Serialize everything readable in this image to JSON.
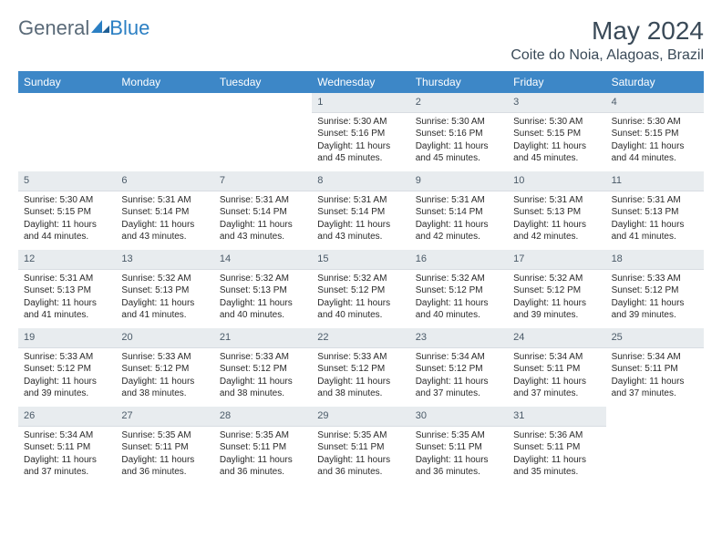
{
  "brand": {
    "part1": "General",
    "part2": "Blue"
  },
  "title": "May 2024",
  "location": "Coite do Noia, Alagoas, Brazil",
  "colors": {
    "header_bg": "#3d87c7",
    "header_text": "#ffffff",
    "daynum_bg": "#e8ecef",
    "daynum_text": "#4a5a68",
    "body_text": "#2a2a2a",
    "title_text": "#3a4a58",
    "brand_gray": "#5a6a78",
    "brand_blue": "#2b7fc3"
  },
  "day_names": [
    "Sunday",
    "Monday",
    "Tuesday",
    "Wednesday",
    "Thursday",
    "Friday",
    "Saturday"
  ],
  "weeks": [
    [
      {
        "empty": true
      },
      {
        "empty": true
      },
      {
        "empty": true
      },
      {
        "day": "1",
        "sunrise": "Sunrise: 5:30 AM",
        "sunset": "Sunset: 5:16 PM",
        "daylight": "Daylight: 11 hours and 45 minutes."
      },
      {
        "day": "2",
        "sunrise": "Sunrise: 5:30 AM",
        "sunset": "Sunset: 5:16 PM",
        "daylight": "Daylight: 11 hours and 45 minutes."
      },
      {
        "day": "3",
        "sunrise": "Sunrise: 5:30 AM",
        "sunset": "Sunset: 5:15 PM",
        "daylight": "Daylight: 11 hours and 45 minutes."
      },
      {
        "day": "4",
        "sunrise": "Sunrise: 5:30 AM",
        "sunset": "Sunset: 5:15 PM",
        "daylight": "Daylight: 11 hours and 44 minutes."
      }
    ],
    [
      {
        "day": "5",
        "sunrise": "Sunrise: 5:30 AM",
        "sunset": "Sunset: 5:15 PM",
        "daylight": "Daylight: 11 hours and 44 minutes."
      },
      {
        "day": "6",
        "sunrise": "Sunrise: 5:31 AM",
        "sunset": "Sunset: 5:14 PM",
        "daylight": "Daylight: 11 hours and 43 minutes."
      },
      {
        "day": "7",
        "sunrise": "Sunrise: 5:31 AM",
        "sunset": "Sunset: 5:14 PM",
        "daylight": "Daylight: 11 hours and 43 minutes."
      },
      {
        "day": "8",
        "sunrise": "Sunrise: 5:31 AM",
        "sunset": "Sunset: 5:14 PM",
        "daylight": "Daylight: 11 hours and 43 minutes."
      },
      {
        "day": "9",
        "sunrise": "Sunrise: 5:31 AM",
        "sunset": "Sunset: 5:14 PM",
        "daylight": "Daylight: 11 hours and 42 minutes."
      },
      {
        "day": "10",
        "sunrise": "Sunrise: 5:31 AM",
        "sunset": "Sunset: 5:13 PM",
        "daylight": "Daylight: 11 hours and 42 minutes."
      },
      {
        "day": "11",
        "sunrise": "Sunrise: 5:31 AM",
        "sunset": "Sunset: 5:13 PM",
        "daylight": "Daylight: 11 hours and 41 minutes."
      }
    ],
    [
      {
        "day": "12",
        "sunrise": "Sunrise: 5:31 AM",
        "sunset": "Sunset: 5:13 PM",
        "daylight": "Daylight: 11 hours and 41 minutes."
      },
      {
        "day": "13",
        "sunrise": "Sunrise: 5:32 AM",
        "sunset": "Sunset: 5:13 PM",
        "daylight": "Daylight: 11 hours and 41 minutes."
      },
      {
        "day": "14",
        "sunrise": "Sunrise: 5:32 AM",
        "sunset": "Sunset: 5:13 PM",
        "daylight": "Daylight: 11 hours and 40 minutes."
      },
      {
        "day": "15",
        "sunrise": "Sunrise: 5:32 AM",
        "sunset": "Sunset: 5:12 PM",
        "daylight": "Daylight: 11 hours and 40 minutes."
      },
      {
        "day": "16",
        "sunrise": "Sunrise: 5:32 AM",
        "sunset": "Sunset: 5:12 PM",
        "daylight": "Daylight: 11 hours and 40 minutes."
      },
      {
        "day": "17",
        "sunrise": "Sunrise: 5:32 AM",
        "sunset": "Sunset: 5:12 PM",
        "daylight": "Daylight: 11 hours and 39 minutes."
      },
      {
        "day": "18",
        "sunrise": "Sunrise: 5:33 AM",
        "sunset": "Sunset: 5:12 PM",
        "daylight": "Daylight: 11 hours and 39 minutes."
      }
    ],
    [
      {
        "day": "19",
        "sunrise": "Sunrise: 5:33 AM",
        "sunset": "Sunset: 5:12 PM",
        "daylight": "Daylight: 11 hours and 39 minutes."
      },
      {
        "day": "20",
        "sunrise": "Sunrise: 5:33 AM",
        "sunset": "Sunset: 5:12 PM",
        "daylight": "Daylight: 11 hours and 38 minutes."
      },
      {
        "day": "21",
        "sunrise": "Sunrise: 5:33 AM",
        "sunset": "Sunset: 5:12 PM",
        "daylight": "Daylight: 11 hours and 38 minutes."
      },
      {
        "day": "22",
        "sunrise": "Sunrise: 5:33 AM",
        "sunset": "Sunset: 5:12 PM",
        "daylight": "Daylight: 11 hours and 38 minutes."
      },
      {
        "day": "23",
        "sunrise": "Sunrise: 5:34 AM",
        "sunset": "Sunset: 5:12 PM",
        "daylight": "Daylight: 11 hours and 37 minutes."
      },
      {
        "day": "24",
        "sunrise": "Sunrise: 5:34 AM",
        "sunset": "Sunset: 5:11 PM",
        "daylight": "Daylight: 11 hours and 37 minutes."
      },
      {
        "day": "25",
        "sunrise": "Sunrise: 5:34 AM",
        "sunset": "Sunset: 5:11 PM",
        "daylight": "Daylight: 11 hours and 37 minutes."
      }
    ],
    [
      {
        "day": "26",
        "sunrise": "Sunrise: 5:34 AM",
        "sunset": "Sunset: 5:11 PM",
        "daylight": "Daylight: 11 hours and 37 minutes."
      },
      {
        "day": "27",
        "sunrise": "Sunrise: 5:35 AM",
        "sunset": "Sunset: 5:11 PM",
        "daylight": "Daylight: 11 hours and 36 minutes."
      },
      {
        "day": "28",
        "sunrise": "Sunrise: 5:35 AM",
        "sunset": "Sunset: 5:11 PM",
        "daylight": "Daylight: 11 hours and 36 minutes."
      },
      {
        "day": "29",
        "sunrise": "Sunrise: 5:35 AM",
        "sunset": "Sunset: 5:11 PM",
        "daylight": "Daylight: 11 hours and 36 minutes."
      },
      {
        "day": "30",
        "sunrise": "Sunrise: 5:35 AM",
        "sunset": "Sunset: 5:11 PM",
        "daylight": "Daylight: 11 hours and 36 minutes."
      },
      {
        "day": "31",
        "sunrise": "Sunrise: 5:36 AM",
        "sunset": "Sunset: 5:11 PM",
        "daylight": "Daylight: 11 hours and 35 minutes."
      },
      {
        "empty": true
      }
    ]
  ]
}
